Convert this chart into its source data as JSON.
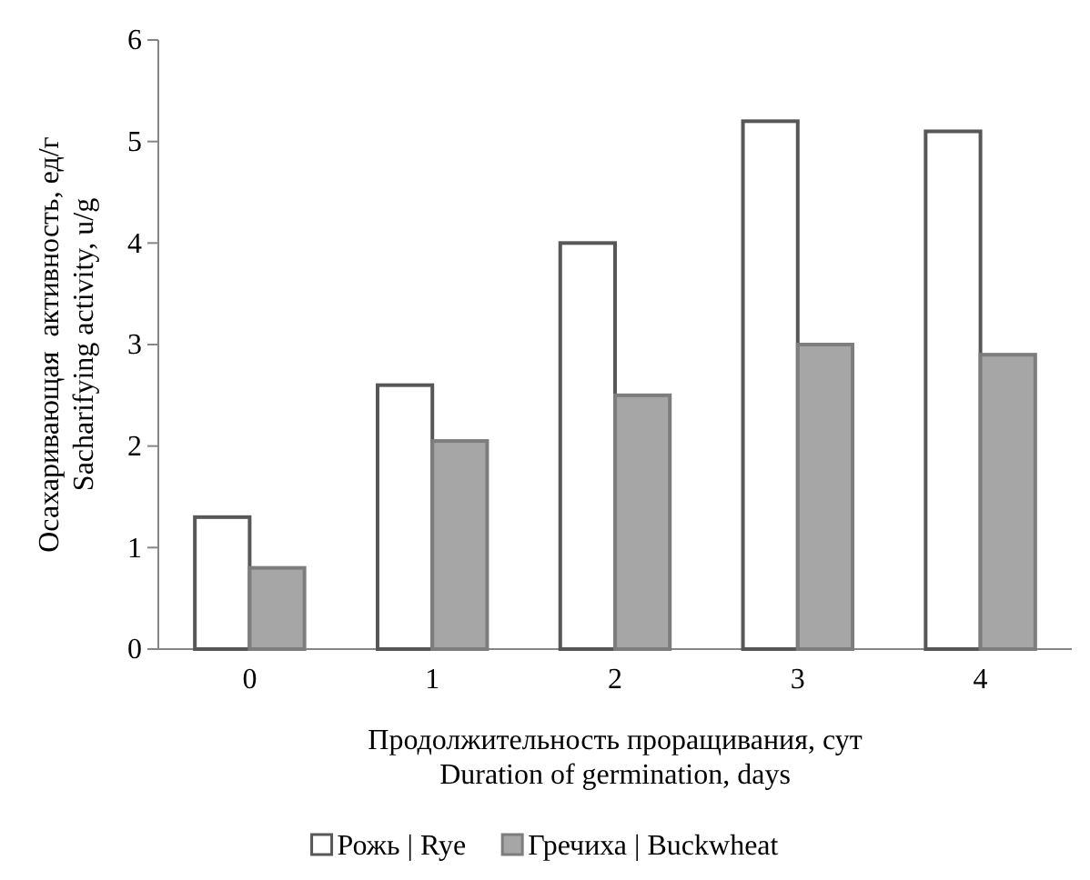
{
  "chart_data": {
    "type": "bar",
    "xlabel": "Продолжительность проращивания, сут\nDuration of germination, days",
    "ylabel": "Осахаривающая  активность, ед/г\nSacharifying activity, u/g",
    "categories": [
      "0",
      "1",
      "2",
      "3",
      "4"
    ],
    "series": [
      {
        "name": "Рожь | Rye",
        "color": "#ffffff",
        "values": [
          1.3,
          2.6,
          4.0,
          5.2,
          5.1
        ]
      },
      {
        "name": "Гречиха | Buckwheat",
        "color": "#a6a6a6",
        "values": [
          0.8,
          2.05,
          2.5,
          3.0,
          2.9
        ]
      }
    ],
    "ylim": [
      0,
      6
    ],
    "yticks": [
      0,
      1,
      2,
      3,
      4,
      5,
      6
    ],
    "grid": false,
    "legend": "bottom"
  }
}
